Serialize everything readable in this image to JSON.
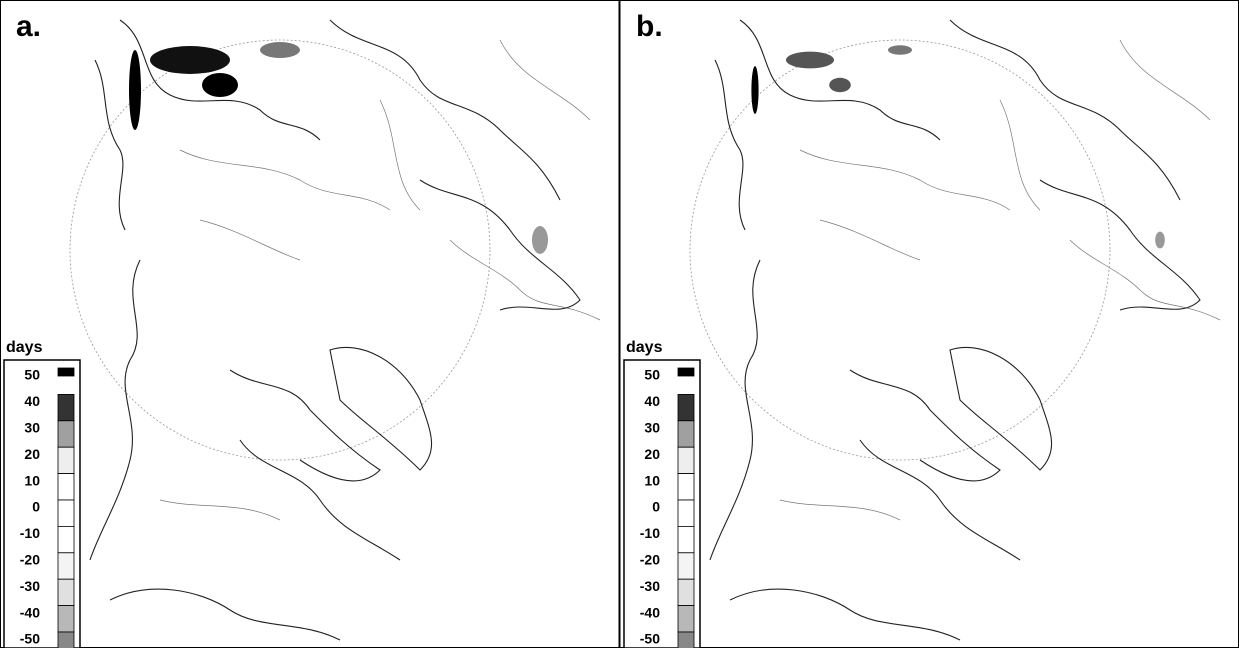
{
  "panels": [
    {
      "label": "a.",
      "legend": {
        "title": "days",
        "ticks": [
          "50",
          "40",
          "30",
          "20",
          "10",
          "0",
          "-10",
          "-20",
          "-30",
          "-40",
          "-50"
        ],
        "colors": [
          "#000000",
          "#333333",
          "#a0a0a0",
          "#eeeeee",
          "#ffffff",
          "#ffffff",
          "#ffffff",
          "#f4f4f4",
          "#e0e0e0",
          "#b8b8b8",
          "#888888"
        ]
      }
    },
    {
      "label": "b.",
      "legend": {
        "title": "days",
        "ticks": [
          "50",
          "40",
          "30",
          "20",
          "10",
          "0",
          "-10",
          "-20",
          "-30",
          "-40",
          "-50"
        ],
        "colors": [
          "#000000",
          "#333333",
          "#a0a0a0",
          "#eeeeee",
          "#ffffff",
          "#ffffff",
          "#ffffff",
          "#f4f4f4",
          "#e0e0e0",
          "#b8b8b8",
          "#888888"
        ]
      }
    }
  ]
}
